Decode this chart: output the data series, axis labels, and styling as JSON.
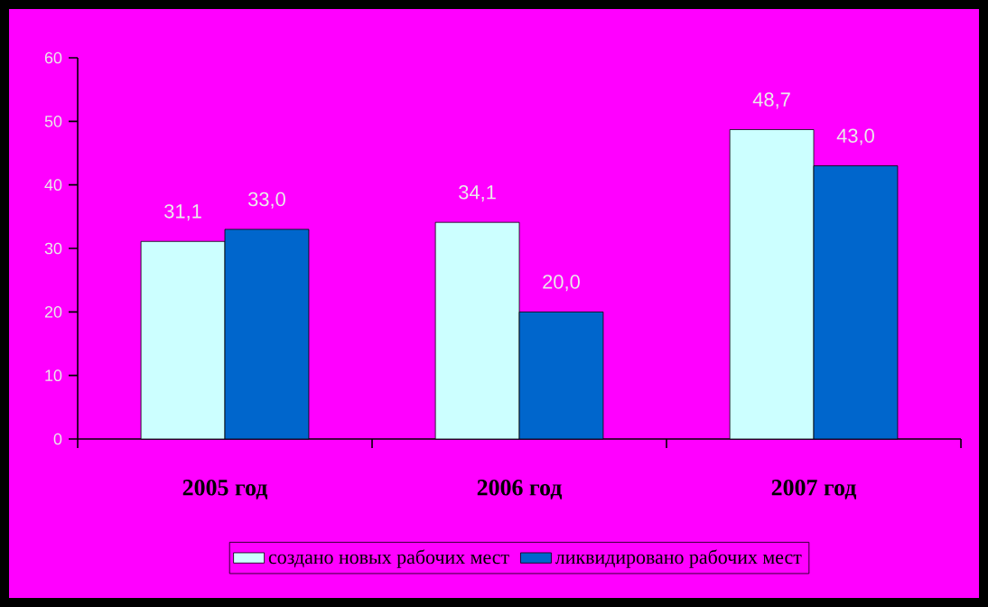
{
  "chart_data": {
    "type": "bar",
    "categories": [
      "2005 год",
      "2006 год",
      "2007 год"
    ],
    "series": [
      {
        "name": "создано новых рабочих мест",
        "color": "#ccffff",
        "values": [
          31.1,
          34.1,
          48.7
        ],
        "value_labels": [
          "31,1",
          "34,1",
          "48,7"
        ]
      },
      {
        "name": "ликвидировано рабочих мест",
        "color": "#0066cc",
        "values": [
          33.0,
          20.0,
          43.0
        ],
        "value_labels": [
          "33,0",
          "20,0",
          "43,0"
        ]
      }
    ],
    "ylim": [
      0,
      60
    ],
    "yticks": [
      0,
      10,
      20,
      30,
      40,
      50,
      60
    ],
    "legend": "bottom"
  }
}
